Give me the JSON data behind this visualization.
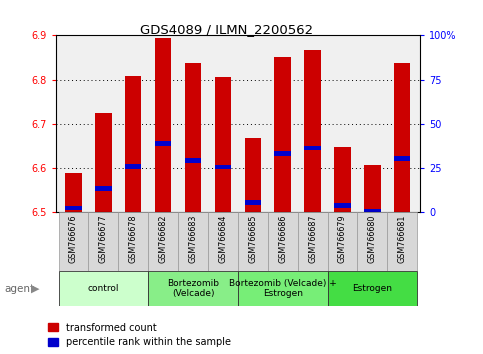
{
  "title": "GDS4089 / ILMN_2200562",
  "samples": [
    "GSM766676",
    "GSM766677",
    "GSM766678",
    "GSM766682",
    "GSM766683",
    "GSM766684",
    "GSM766685",
    "GSM766686",
    "GSM766687",
    "GSM766679",
    "GSM766680",
    "GSM766681"
  ],
  "red_values": [
    6.588,
    6.724,
    6.808,
    6.893,
    6.838,
    6.806,
    6.668,
    6.852,
    6.868,
    6.648,
    6.608,
    6.838
  ],
  "blue_values": [
    6.51,
    6.554,
    6.604,
    6.656,
    6.617,
    6.602,
    6.522,
    6.633,
    6.646,
    6.516,
    6.502,
    6.622
  ],
  "ymin": 6.5,
  "ymax": 6.9,
  "yticks_left": [
    6.5,
    6.6,
    6.7,
    6.8,
    6.9
  ],
  "yticks_right": [
    0,
    25,
    50,
    75,
    100
  ],
  "groups": [
    {
      "label": "control",
      "start": 0,
      "end": 3
    },
    {
      "label": "Bortezomib\n(Velcade)",
      "start": 3,
      "end": 6
    },
    {
      "label": "Bortezomib (Velcade) +\nEstrogen",
      "start": 6,
      "end": 9
    },
    {
      "label": "Estrogen",
      "start": 9,
      "end": 12
    }
  ],
  "group_colors": [
    "#ccffcc",
    "#88ee88",
    "#77ee77",
    "#44dd44"
  ],
  "bar_color": "#cc0000",
  "blue_color": "#0000cc",
  "bar_width": 0.55,
  "blue_bar_height": 0.01,
  "legend_red": "transformed count",
  "legend_blue": "percentile rank within the sample",
  "agent_label": "agent",
  "plot_bg": "#f0f0f0",
  "sample_bg": "#d0d0d0",
  "sample_cell_edge": "#999999"
}
